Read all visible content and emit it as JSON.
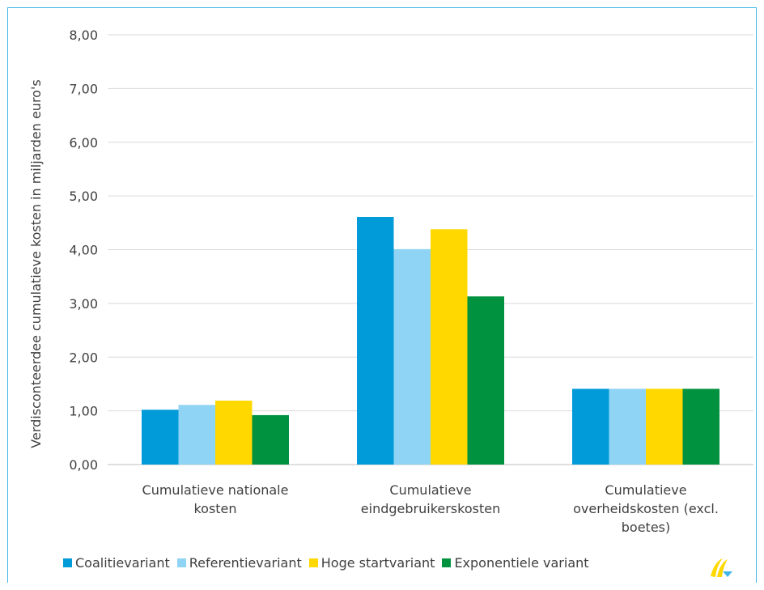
{
  "chart_data": {
    "type": "bar",
    "title": "",
    "ylabel": "Verdisconteerdee cumulatieve kosten in miljarden  euro's",
    "xlabel": "",
    "ylim": [
      0,
      8
    ],
    "yticks": [
      "0,00",
      "1,00",
      "2,00",
      "3,00",
      "4,00",
      "5,00",
      "6,00",
      "7,00",
      "8,00"
    ],
    "categories": [
      [
        "Cumulatieve nationale",
        "kosten"
      ],
      [
        "Cumulatieve",
        "eindgebruikerskosten"
      ],
      [
        "Cumulatieve",
        "overheidskosten (excl.",
        "boetes)"
      ]
    ],
    "series": [
      {
        "name": "Coalitievariant",
        "color": "#009bd8",
        "values": [
          1.02,
          4.61,
          1.41
        ]
      },
      {
        "name": "Referentievariant",
        "color": "#8fd3f5",
        "values": [
          1.11,
          4.01,
          1.41
        ]
      },
      {
        "name": "Hoge startvariant",
        "color": "#ffd800",
        "values": [
          1.19,
          4.38,
          1.41
        ]
      },
      {
        "name": "Exponentiele variant",
        "color": "#00923f",
        "values": [
          0.92,
          3.13,
          1.41
        ]
      }
    ],
    "grid": true,
    "legend_position": "bottom"
  }
}
